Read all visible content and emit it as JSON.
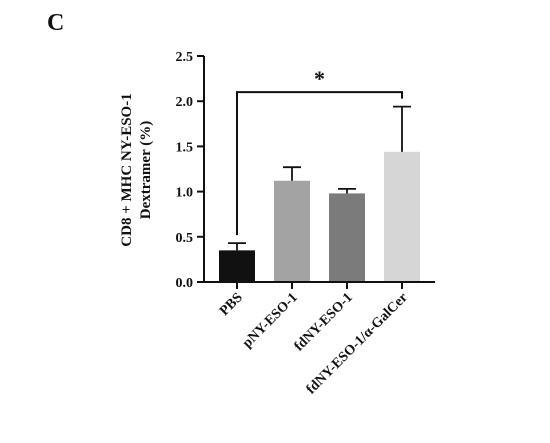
{
  "panel_label": "C",
  "chart_data": {
    "type": "bar",
    "title": "",
    "xlabel": "",
    "ylabel_lines": [
      "CD8 + MHC NY-ESO-1",
      "Dextramer (%)"
    ],
    "ylim": [
      0,
      2.5
    ],
    "yticks": [
      "0.0",
      "0.5",
      "1.0",
      "1.5",
      "2.0",
      "2.5"
    ],
    "ytick_values": [
      0,
      0.5,
      1.0,
      1.5,
      2.0,
      2.5
    ],
    "grid": false,
    "legend": "none",
    "categories": [
      "PBS",
      "pNY-ESO-1",
      "fdNY-ESO-1",
      "fdNY-ESO-1/α-GalCer"
    ],
    "values": [
      0.35,
      1.12,
      0.98,
      1.44
    ],
    "error_upper": [
      0.08,
      0.15,
      0.05,
      0.5
    ],
    "bar_colors": [
      "#111111",
      "#a3a3a3",
      "#7b7b7b",
      "#d6d6d6"
    ],
    "significance": {
      "from_category": "PBS",
      "to_category": "fdNY-ESO-1/α-GalCer",
      "label": "*"
    }
  }
}
